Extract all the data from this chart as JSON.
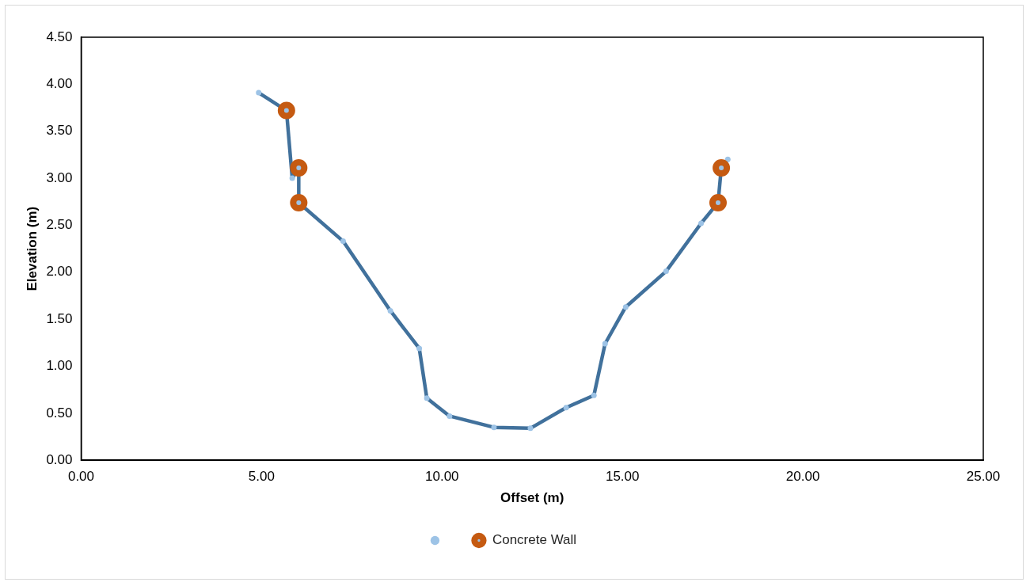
{
  "chart_data": {
    "type": "line",
    "xlabel": "Offset (m)",
    "ylabel": "Elevation (m)",
    "xlim": [
      0,
      25
    ],
    "xticks": [
      {
        "value": 0,
        "label": "0.00"
      },
      {
        "value": 5,
        "label": "5.00"
      },
      {
        "value": 10,
        "label": "10.00"
      },
      {
        "value": 15,
        "label": "15.00"
      },
      {
        "value": 20,
        "label": "20.00"
      },
      {
        "value": 25,
        "label": "25.00"
      }
    ],
    "ylim": [
      0,
      4.5
    ],
    "yticks": [
      {
        "value": 0,
        "label": "0.00"
      },
      {
        "value": 0.5,
        "label": "0.50"
      },
      {
        "value": 1,
        "label": "1.00"
      },
      {
        "value": 1.5,
        "label": "1.50"
      },
      {
        "value": 2,
        "label": "2.00"
      },
      {
        "value": 2.5,
        "label": "2.50"
      },
      {
        "value": 3,
        "label": "3.00"
      },
      {
        "value": 3.5,
        "label": "3.50"
      },
      {
        "value": 4,
        "label": "4.00"
      },
      {
        "value": 4.5,
        "label": "4.50"
      }
    ],
    "grid": false,
    "legend": "bottom",
    "marker": "circle",
    "line_style": "solid",
    "series": [
      {
        "color": "#41719c",
        "x": [
          4.92,
          5.69,
          5.85,
          6.03,
          6.03,
          7.26,
          8.57,
          9.37,
          9.58,
          10.21,
          11.44,
          12.45,
          13.44,
          14.21,
          14.52,
          15.09,
          16.21,
          17.18,
          17.65,
          17.74,
          17.92
        ],
        "values": [
          3.91,
          3.72,
          3.0,
          3.11,
          2.74,
          2.33,
          1.59,
          1.19,
          0.66,
          0.47,
          0.35,
          0.34,
          0.56,
          0.69,
          1.24,
          1.63,
          2.01,
          2.52,
          2.74,
          3.11,
          3.2
        ]
      },
      {
        "type": "scatter",
        "name": "Concrete Wall",
        "color": "#c55a11",
        "x": [
          5.69,
          6.03,
          6.03,
          17.65,
          17.74
        ],
        "values": [
          3.72,
          3.11,
          2.74,
          2.74,
          3.11
        ]
      }
    ]
  }
}
